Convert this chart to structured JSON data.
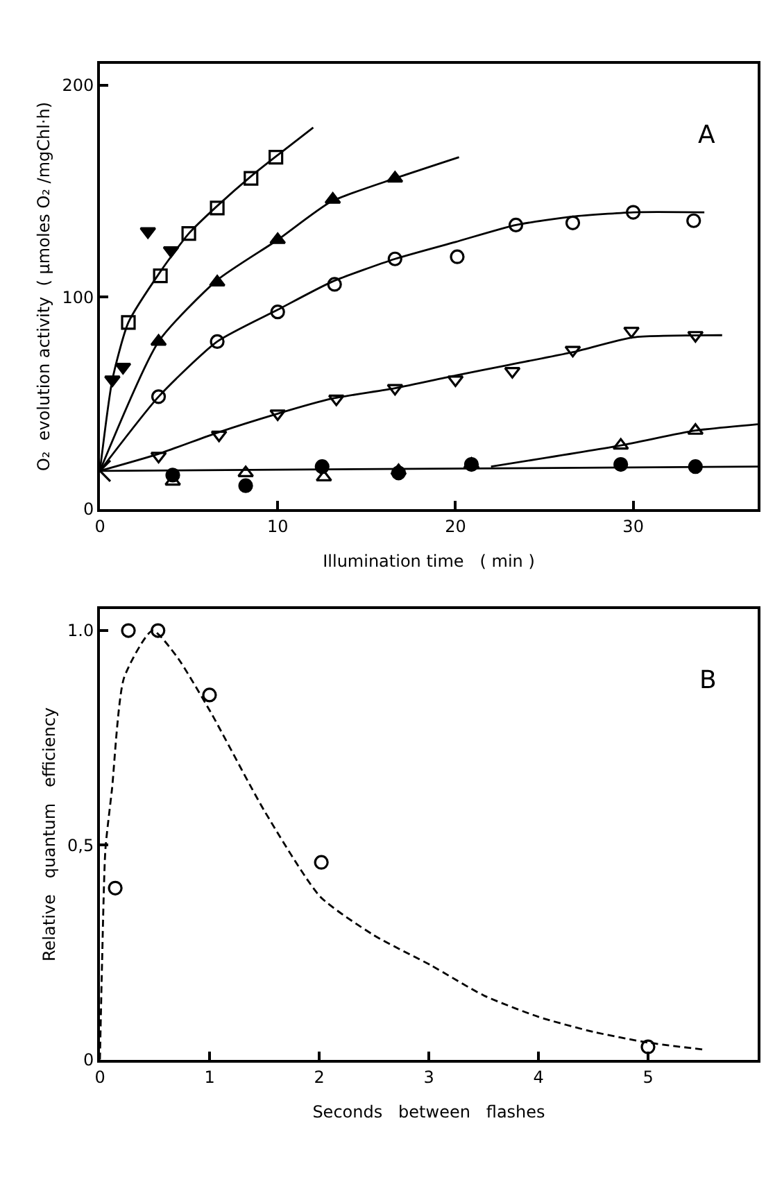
{
  "chart_data": [
    {
      "type": "scatter",
      "xlabel": "Illumination time   ( min )",
      "ylabel": "O₂  evolution activity  ( μmoles O₂ /mgChl·h)",
      "annotations": [
        "A"
      ],
      "xlim": [
        0,
        37
      ],
      "ylim": [
        0,
        210
      ],
      "xticks": [
        0,
        10,
        20,
        30
      ],
      "yticks": [
        0,
        100,
        200
      ],
      "legend": false,
      "series": [
        {
          "type": "line",
          "marker": "none",
          "line_style": "solid",
          "color": "#000000",
          "x": [
            0,
            0.7,
            1.6,
            3.4,
            5,
            6.6,
            8.5,
            10,
            12
          ],
          "values": [
            18,
            61,
            88,
            112,
            130,
            143,
            157,
            167,
            180
          ]
        },
        {
          "type": "line",
          "marker": "none",
          "line_style": "solid",
          "color": "#000000",
          "x": [
            0,
            3.3,
            6.6,
            10,
            13,
            16.6,
            20.2
          ],
          "values": [
            18,
            79,
            108,
            127,
            145,
            156,
            166
          ]
        },
        {
          "type": "line",
          "marker": "none",
          "line_style": "solid",
          "color": "#000000",
          "x": [
            0,
            3.3,
            6.6,
            10,
            13,
            16.6,
            20,
            23.4,
            26.6,
            30,
            34
          ],
          "values": [
            18,
            53,
            79,
            94,
            107,
            118,
            126,
            134,
            138,
            140,
            140
          ]
        },
        {
          "type": "line",
          "marker": "none",
          "line_style": "solid",
          "color": "#000000",
          "x": [
            0,
            3.3,
            6.6,
            10,
            13,
            16.6,
            20,
            23,
            26.6,
            30,
            35
          ],
          "values": [
            18,
            26,
            36,
            45,
            52,
            57,
            63,
            68,
            74,
            81,
            82
          ]
        },
        {
          "type": "line",
          "marker": "none",
          "line_style": "solid",
          "color": "#000000",
          "x": [
            22,
            29.3,
            33.5,
            37
          ],
          "values": [
            20,
            30,
            37,
            40
          ]
        },
        {
          "type": "line",
          "marker": "none",
          "line_style": "solid",
          "color": "#000000",
          "x": [
            0,
            37
          ],
          "values": [
            18,
            20
          ]
        },
        {
          "marker": "square-open",
          "color": "#000000",
          "x": [
            1.6,
            3.4,
            5.0,
            6.6,
            8.5,
            9.9
          ],
          "values": [
            88,
            110,
            130,
            142,
            156,
            166
          ]
        },
        {
          "marker": "triangle-down",
          "color": "#000000",
          "x": [
            0.7,
            1.3,
            2.7,
            4.0
          ],
          "values": [
            61,
            67,
            131,
            122
          ]
        },
        {
          "marker": "triangle-up",
          "color": "#000000",
          "x": [
            3.3,
            6.6,
            10.0,
            13.1,
            16.6
          ],
          "values": [
            79,
            107,
            127,
            146,
            156
          ]
        },
        {
          "marker": "circle-open",
          "color": "#000000",
          "x": [
            3.3,
            6.6,
            10.0,
            13.2,
            16.6,
            20.1,
            23.4,
            26.6,
            30.0,
            33.4
          ],
          "values": [
            53,
            79,
            93,
            106,
            118,
            119,
            134,
            135,
            140,
            136
          ]
        },
        {
          "marker": "triangle-down-open",
          "color": "#000000",
          "x": [
            3.3,
            6.7,
            10.0,
            13.3,
            16.6,
            20.0,
            23.2,
            26.6,
            29.9,
            33.5
          ],
          "values": [
            25,
            35,
            45,
            52,
            57,
            61,
            65,
            75,
            84,
            82
          ]
        },
        {
          "marker": "circle",
          "color": "#000000",
          "x": [
            4.1,
            8.2,
            12.5,
            16.8,
            20.9,
            29.3,
            33.5
          ],
          "values": [
            16,
            11,
            20,
            17,
            21,
            21,
            20
          ]
        },
        {
          "marker": "triangle-up-open",
          "color": "#000000",
          "x": [
            4.1,
            8.2,
            12.6,
            16.8,
            20.9,
            29.3,
            33.5
          ],
          "values": [
            13,
            17,
            15,
            18,
            21,
            30,
            37
          ]
        },
        {
          "marker": "cross",
          "color": "#000000",
          "x": [
            0
          ],
          "values": [
            18
          ]
        }
      ]
    },
    {
      "type": "scatter",
      "xlabel": "Seconds   between   flashes",
      "ylabel": "Relative   quantum   efficiency",
      "annotations": [
        "B"
      ],
      "xlim": [
        0,
        6
      ],
      "ylim": [
        0,
        1.05
      ],
      "xticks": [
        0,
        1,
        2,
        3,
        4,
        5
      ],
      "yticks": [
        0,
        {
          "value": 0.5,
          "label": "0,5"
        },
        {
          "value": 1.0,
          "label": "1.0"
        }
      ],
      "legend": false,
      "series": [
        {
          "type": "line",
          "marker": "none",
          "line_style": "dashed",
          "color": "#000000",
          "x": [
            0,
            0.02,
            0.05,
            0.11,
            0.22,
            0.48,
            0.7,
            1.01,
            1.5,
            2.01,
            2.5,
            3.02,
            3.5,
            4.0,
            4.5,
            5.0,
            5.5
          ],
          "values": [
            0,
            0.23,
            0.49,
            0.63,
            0.89,
            1.0,
            0.94,
            0.81,
            0.58,
            0.38,
            0.29,
            0.22,
            0.15,
            0.1,
            0.065,
            0.04,
            0.024
          ]
        },
        {
          "marker": "circle-open",
          "color": "#000000",
          "x": [
            0.14,
            0.26,
            0.53,
            1.0,
            2.02,
            5.0
          ],
          "values": [
            0.4,
            1.0,
            1.0,
            0.85,
            0.46,
            0.03
          ]
        }
      ]
    }
  ]
}
